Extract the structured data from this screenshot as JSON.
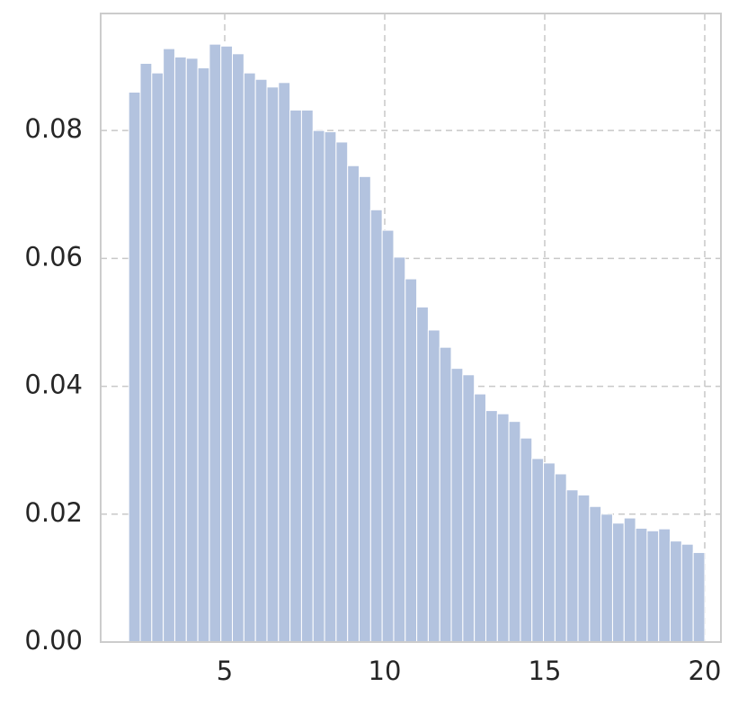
{
  "chart_data": {
    "type": "histogram",
    "bins": [
      2,
      2.36,
      2.72,
      3.08,
      3.44,
      3.8,
      4.16,
      4.52,
      4.88,
      5.24,
      5.6,
      5.96,
      6.32,
      6.68,
      7.04,
      7.4,
      7.76,
      8.12,
      8.48,
      8.84,
      9.2,
      9.56,
      9.92,
      10.28,
      10.64,
      11,
      11.36,
      11.72,
      12.08,
      12.44,
      12.8,
      13.16,
      13.52,
      13.88,
      14.24,
      14.6,
      14.96,
      15.32,
      15.68,
      16.04,
      16.4,
      16.76,
      17.12,
      17.48,
      17.84,
      18.2,
      18.56,
      18.92,
      19.28,
      19.64,
      20
    ],
    "values": [
      0.086,
      0.0905,
      0.089,
      0.0928,
      0.0915,
      0.0913,
      0.0898,
      0.0935,
      0.0932,
      0.092,
      0.089,
      0.088,
      0.0868,
      0.0875,
      0.0832,
      0.0832,
      0.08,
      0.0798,
      0.0782,
      0.0745,
      0.0728,
      0.0676,
      0.0644,
      0.0602,
      0.0568,
      0.0524,
      0.0488,
      0.0461,
      0.0428,
      0.0418,
      0.0388,
      0.0362,
      0.0357,
      0.0345,
      0.0319,
      0.0287,
      0.028,
      0.0263,
      0.0238,
      0.023,
      0.0212,
      0.02,
      0.0186,
      0.0194,
      0.0178,
      0.0174,
      0.0177,
      0.0158,
      0.0153,
      0.014
    ],
    "color": "#b3c3df",
    "xlim": [
      1.124,
      20.506
    ],
    "ylim": [
      0,
      0.0983
    ],
    "xticks": [
      5,
      10,
      15,
      20
    ],
    "yticks": [
      {
        "value": 0,
        "label": "0.00"
      },
      {
        "value": 0.02,
        "label": "0.02"
      },
      {
        "value": 0.04,
        "label": "0.04"
      },
      {
        "value": 0.06,
        "label": "0.06"
      },
      {
        "value": 0.08,
        "label": "0.08"
      }
    ],
    "grid": true
  }
}
